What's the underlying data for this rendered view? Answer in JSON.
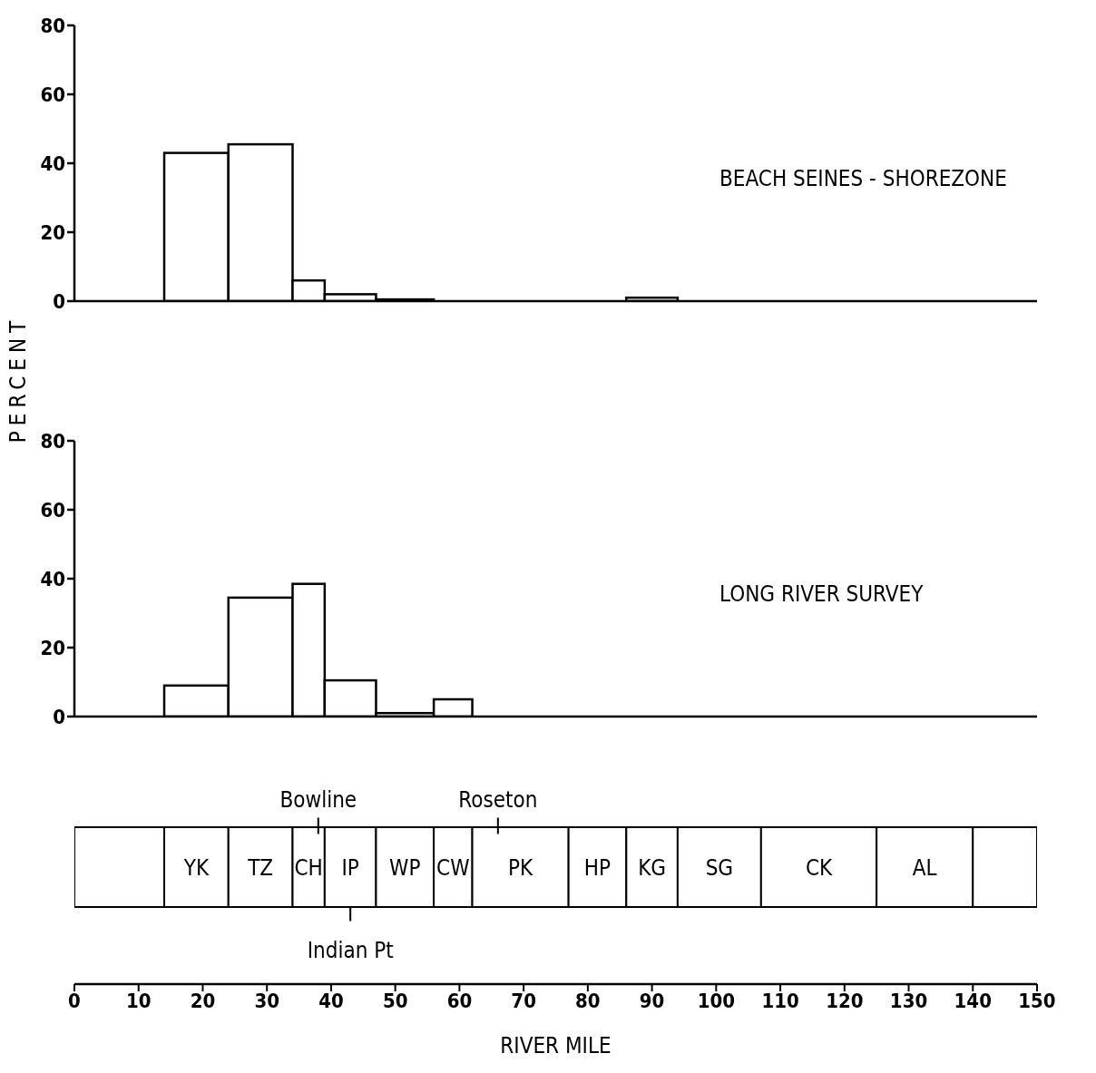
{
  "chart_data": [
    {
      "type": "histogram",
      "ylabel": "PERCENT",
      "annotations": [
        "BEACH SEINES - SHOREZONE"
      ],
      "bins": [
        14,
        24,
        34,
        39,
        47,
        56,
        86,
        94
      ],
      "values": [
        43,
        45.5,
        6,
        2,
        0.5,
        0,
        1
      ],
      "color": "#000000",
      "xlim": [
        0,
        150
      ],
      "ylim": [
        0,
        80
      ],
      "yticks": [
        0,
        20,
        40,
        60,
        80
      ],
      "tick_labels": "y"
    },
    {
      "type": "histogram",
      "annotations": [
        "LONG RIVER SURVEY"
      ],
      "bins": [
        14,
        24,
        34,
        39,
        47,
        56,
        62
      ],
      "values": [
        9,
        34.5,
        38.5,
        10.5,
        1,
        5
      ],
      "color": "#000000",
      "xlim": [
        0,
        150
      ],
      "ylim": [
        0,
        80
      ],
      "yticks": [
        0,
        20,
        40,
        60,
        80
      ],
      "tick_labels": "y"
    },
    {
      "type": "bar",
      "orientation": "horizontal",
      "stacked": true,
      "categories": [
        null
      ],
      "xlabel": "RIVER MILE",
      "xlim": [
        0,
        150
      ],
      "xticks": [
        0,
        10,
        20,
        30,
        40,
        50,
        60,
        70,
        80,
        90,
        100,
        110,
        120,
        130,
        140,
        150
      ],
      "tick_labels": "x",
      "series": [
        {
          "color": "#ffffff",
          "values": [
            14
          ]
        },
        {
          "name": "YK",
          "color": "#ffffff",
          "values": [
            10
          ]
        },
        {
          "name": "TZ",
          "color": "#ffffff",
          "values": [
            10
          ]
        },
        {
          "name": "CH",
          "color": "#ffffff",
          "values": [
            5
          ]
        },
        {
          "name": "IP",
          "color": "#ffffff",
          "values": [
            8
          ]
        },
        {
          "name": "WP",
          "color": "#ffffff",
          "values": [
            9
          ]
        },
        {
          "name": "CW",
          "color": "#ffffff",
          "values": [
            6
          ]
        },
        {
          "name": "PK",
          "color": "#ffffff",
          "values": [
            15
          ]
        },
        {
          "name": "HP",
          "color": "#ffffff",
          "values": [
            9
          ]
        },
        {
          "name": "KG",
          "color": "#ffffff",
          "values": [
            8
          ]
        },
        {
          "name": "SG",
          "color": "#ffffff",
          "values": [
            13
          ]
        },
        {
          "name": "CK",
          "color": "#ffffff",
          "values": [
            18
          ]
        },
        {
          "name": "AL",
          "color": "#ffffff",
          "values": [
            15
          ]
        },
        {
          "color": "#ffffff",
          "values": [
            10
          ]
        }
      ],
      "ref_lines": [
        {
          "axis": "x",
          "value": 38,
          "label": "Bowline"
        },
        {
          "axis": "x",
          "value": 43,
          "label": "Indian Pt"
        },
        {
          "axis": "x",
          "value": 66,
          "label": "Roseton"
        }
      ]
    }
  ]
}
